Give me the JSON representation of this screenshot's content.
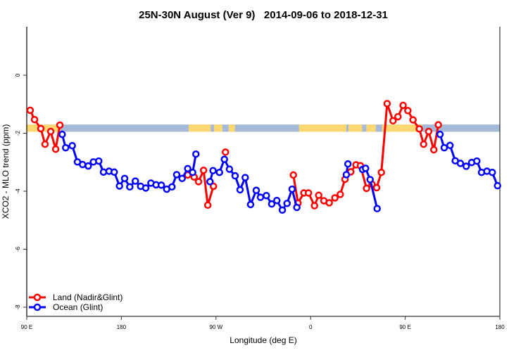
{
  "chart_data": {
    "type": "line",
    "title": "25N-30N August (Ver 9)   2014-09-06 to 2018-12-31",
    "xlabel": "Longitude (deg E)",
    "ylabel": "XCO2 - MLO trend (ppm)",
    "xlim": [
      90,
      540
    ],
    "ylim": [
      -8.8,
      1.65
    ],
    "x_ticks": [
      {
        "value": 90,
        "label": "90 E"
      },
      {
        "value": 180,
        "label": "180"
      },
      {
        "value": 270,
        "label": "90 W"
      },
      {
        "value": 360,
        "label": "0"
      },
      {
        "value": 450,
        "label": "90 E"
      },
      {
        "value": 540,
        "label": "180"
      }
    ],
    "y_ticks": [
      {
        "value": 0,
        "label": "0"
      },
      {
        "value": -2,
        "label": "-2"
      },
      {
        "value": -4,
        "label": "-4"
      },
      {
        "value": -6,
        "label": "-6"
      },
      {
        "value": -8,
        "label": "-8"
      }
    ],
    "grid": false,
    "legend": {
      "placement": "bottom-left"
    },
    "land_mask_band": {
      "value_range": [
        -1.7,
        -1.95
      ],
      "ocean_color": "#a5b9d9",
      "land_color": "#fdd772",
      "land_segments_lon": [
        [
          90,
          122
        ],
        [
          244,
          265
        ],
        [
          268,
          276
        ],
        [
          282,
          288
        ],
        [
          349,
          394
        ],
        [
          396,
          409
        ],
        [
          413,
          422
        ],
        [
          428,
          466
        ]
      ]
    },
    "series": [
      {
        "name": "Land (Nadir&Glint)",
        "color": "#ff0000",
        "segments": [
          [
            [
              93.3,
              -1.21
            ],
            [
              97.4,
              -1.53
            ],
            [
              103.4,
              -1.84
            ],
            [
              107.4,
              -2.38
            ],
            [
              112.8,
              -1.94
            ],
            [
              117.5,
              -2.55
            ],
            [
              121.5,
              -1.72
            ]
          ],
          [
            [
              243.1,
              -3.44
            ],
            [
              249.2,
              -3.51
            ],
            [
              253.4,
              -3.67
            ],
            [
              258.2,
              -3.28
            ],
            [
              262.2,
              -4.48
            ],
            [
              267.6,
              -3.83
            ]
          ],
          [
            [
              279.0,
              -2.65
            ]
          ],
          [
            [
              343.6,
              -3.44
            ],
            [
              348.0,
              -4.41
            ],
            [
              353.6,
              -4.06
            ],
            [
              358.0,
              -4.06
            ],
            [
              363.7,
              -4.5
            ],
            [
              367.7,
              -4.14
            ],
            [
              372.6,
              -4.33
            ],
            [
              377.7,
              -4.4
            ],
            [
              383.1,
              -4.23
            ],
            [
              388.2,
              -4.11
            ],
            [
              392.7,
              -3.59
            ],
            [
              398.2,
              -3.33
            ],
            [
              403.2,
              -3.09
            ],
            [
              407.4,
              -3.12
            ],
            [
              413.2,
              -3.9
            ],
            [
              418.4,
              -3.76
            ],
            [
              422.8,
              -3.88
            ],
            [
              427.3,
              -3.35
            ],
            [
              432.8,
              -0.98
            ],
            [
              438.4,
              -1.57
            ],
            [
              443.1,
              -1.43
            ],
            [
              448.0,
              -1.04
            ],
            [
              452.5,
              -1.22
            ],
            [
              457.4,
              -1.54
            ],
            [
              463.4,
              -1.85
            ],
            [
              467.5,
              -2.38
            ],
            [
              472.3,
              -1.94
            ],
            [
              477.2,
              -2.57
            ],
            [
              481.5,
              -1.71
            ]
          ]
        ]
      },
      {
        "name": "Ocean (Glint)",
        "color": "#0000ff",
        "segments": [
          [
            [
              123.7,
              -2.04
            ],
            [
              127.0,
              -2.5
            ],
            [
              133.3,
              -2.43
            ],
            [
              138.2,
              -2.99
            ],
            [
              143.1,
              -3.08
            ],
            [
              148.5,
              -3.13
            ],
            [
              153.4,
              -2.99
            ],
            [
              158.5,
              -2.96
            ],
            [
              163.0,
              -3.34
            ],
            [
              168.3,
              -3.31
            ],
            [
              173.2,
              -3.34
            ],
            [
              178.2,
              -3.82
            ],
            [
              183.1,
              -3.56
            ],
            [
              188.0,
              -3.85
            ],
            [
              193.3,
              -3.65
            ],
            [
              198.3,
              -3.83
            ],
            [
              203.2,
              -3.89
            ],
            [
              208.1,
              -3.72
            ],
            [
              213.0,
              -3.78
            ],
            [
              218.0,
              -3.79
            ],
            [
              223.1,
              -3.93
            ],
            [
              228.1,
              -3.85
            ],
            [
              232.6,
              -3.43
            ],
            [
              237.8,
              -3.56
            ],
            [
              243.1,
              -3.22
            ],
            [
              247.8,
              -3.35
            ],
            [
              250.9,
              -2.72
            ]
          ],
          [
            [
              264.3,
              -3.67
            ],
            [
              267.2,
              -3.29
            ],
            [
              273.3,
              -3.35
            ],
            [
              278.0,
              -2.9
            ],
            [
              282.8,
              -3.24
            ],
            [
              288.2,
              -3.47
            ],
            [
              292.9,
              -3.95
            ],
            [
              297.8,
              -3.53
            ],
            [
              302.9,
              -4.46
            ],
            [
              308.3,
              -3.97
            ],
            [
              312.3,
              -4.21
            ],
            [
              317.9,
              -4.15
            ],
            [
              323.0,
              -4.44
            ],
            [
              327.9,
              -4.32
            ],
            [
              333.1,
              -4.65
            ],
            [
              337.6,
              -4.42
            ],
            [
              342.4,
              -3.93
            ],
            [
              346.9,
              -4.56
            ]
          ],
          [
            [
              394.0,
              -3.43
            ],
            [
              395.5,
              -3.06
            ]
          ],
          [
            [
              409.4,
              -3.25
            ],
            [
              412.3,
              -3.21
            ],
            [
              416.6,
              -3.6
            ],
            [
              423.3,
              -4.6
            ]
          ],
          [
            [
              483.1,
              -2.04
            ],
            [
              487.1,
              -2.5
            ],
            [
              492.6,
              -2.42
            ],
            [
              497.6,
              -2.95
            ],
            [
              502.5,
              -3.04
            ],
            [
              508.0,
              -3.14
            ],
            [
              513.2,
              -3.01
            ],
            [
              518.1,
              -2.96
            ],
            [
              522.6,
              -3.35
            ],
            [
              527.7,
              -3.31
            ],
            [
              532.8,
              -3.35
            ],
            [
              537.8,
              -3.81
            ]
          ]
        ]
      }
    ]
  }
}
